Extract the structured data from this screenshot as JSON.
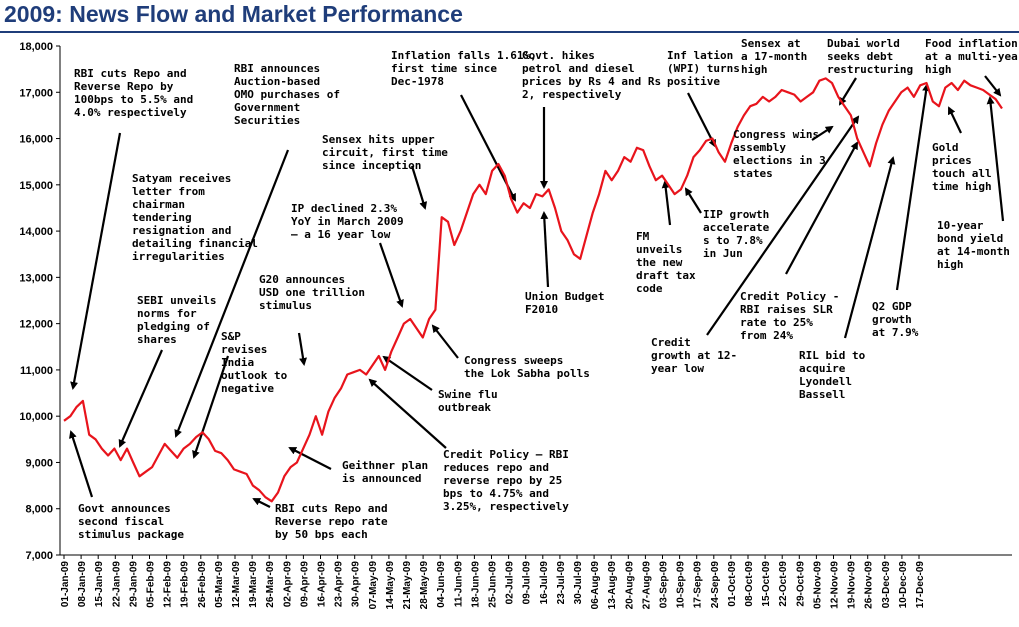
{
  "title": "2009: News Flow and Market Performance",
  "chart_data": {
    "type": "line",
    "title": "2009: News Flow and Market Performance",
    "xlabel": "",
    "ylabel": "",
    "ylim": [
      7000,
      18000
    ],
    "y_ticks": [
      "7,000",
      "8,000",
      "9,000",
      "10,000",
      "11,000",
      "12,000",
      "13,000",
      "14,000",
      "15,000",
      "16,000",
      "17,000",
      "18,000"
    ],
    "x_ticks": [
      "01-Jan-09",
      "08-Jan-09",
      "15-Jan-09",
      "22-Jan-09",
      "29-Jan-09",
      "05-Feb-09",
      "12-Feb-09",
      "19-Feb-09",
      "26-Feb-09",
      "05-Mar-09",
      "12-Mar-09",
      "19-Mar-09",
      "26-Mar-09",
      "02-Apr-09",
      "09-Apr-09",
      "16-Apr-09",
      "23-Apr-09",
      "30-Apr-09",
      "07-May-09",
      "14-May-09",
      "21-May-09",
      "28-May-09",
      "04-Jun-09",
      "11-Jun-09",
      "18-Jun-09",
      "25-Jun-09",
      "02-Jul-09",
      "09-Jul-09",
      "16-Jul-09",
      "23-Jul-09",
      "30-Jul-09",
      "06-Aug-09",
      "13-Aug-09",
      "20-Aug-09",
      "27-Aug-09",
      "03-Sep-09",
      "10-Sep-09",
      "17-Sep-09",
      "24-Sep-09",
      "01-Oct-09",
      "08-Oct-09",
      "15-Oct-09",
      "22-Oct-09",
      "29-Oct-09",
      "05-Nov-09",
      "12-Nov-09",
      "19-Nov-09",
      "26-Nov-09",
      "03-Dec-09",
      "10-Dec-09",
      "17-Dec-09"
    ],
    "grid": false,
    "line_color": "#e8141c",
    "series": [
      {
        "name": "",
        "points": [
          [
            0,
            9900
          ],
          [
            1,
            10000
          ],
          [
            2,
            10200
          ],
          [
            3,
            10330
          ],
          [
            4,
            9600
          ],
          [
            5,
            9500
          ],
          [
            6,
            9300
          ],
          [
            7,
            9150
          ],
          [
            8,
            9300
          ],
          [
            9,
            9050
          ],
          [
            10,
            9300
          ],
          [
            11,
            9000
          ],
          [
            12,
            8700
          ],
          [
            13,
            8800
          ],
          [
            14,
            8900
          ],
          [
            15,
            9150
          ],
          [
            16,
            9400
          ],
          [
            17,
            9250
          ],
          [
            18,
            9100
          ],
          [
            19,
            9300
          ],
          [
            20,
            9400
          ],
          [
            21,
            9550
          ],
          [
            22,
            9650
          ],
          [
            23,
            9500
          ],
          [
            24,
            9250
          ],
          [
            25,
            9200
          ],
          [
            26,
            9050
          ],
          [
            27,
            8850
          ],
          [
            28,
            8800
          ],
          [
            29,
            8750
          ],
          [
            30,
            8500
          ],
          [
            31,
            8400
          ],
          [
            32,
            8250
          ],
          [
            33,
            8160
          ],
          [
            34,
            8350
          ],
          [
            35,
            8700
          ],
          [
            36,
            8900
          ],
          [
            37,
            9000
          ],
          [
            38,
            9300
          ],
          [
            39,
            9600
          ],
          [
            40,
            10000
          ],
          [
            41,
            9600
          ],
          [
            42,
            10100
          ],
          [
            43,
            10400
          ],
          [
            44,
            10600
          ],
          [
            45,
            10900
          ],
          [
            46,
            10950
          ],
          [
            47,
            11000
          ],
          [
            48,
            10900
          ],
          [
            49,
            11100
          ],
          [
            50,
            11300
          ],
          [
            51,
            11000
          ],
          [
            52,
            11400
          ],
          [
            53,
            11700
          ],
          [
            54,
            12000
          ],
          [
            55,
            12100
          ],
          [
            56,
            11900
          ],
          [
            57,
            11700
          ],
          [
            58,
            12100
          ],
          [
            59,
            12300
          ],
          [
            60,
            14300
          ],
          [
            61,
            14200
          ],
          [
            62,
            13700
          ],
          [
            63,
            14000
          ],
          [
            64,
            14400
          ],
          [
            65,
            14800
          ],
          [
            66,
            15000
          ],
          [
            67,
            14800
          ],
          [
            68,
            15300
          ],
          [
            69,
            15450
          ],
          [
            70,
            15200
          ],
          [
            71,
            14700
          ],
          [
            72,
            14400
          ],
          [
            73,
            14600
          ],
          [
            74,
            14500
          ],
          [
            75,
            14800
          ],
          [
            76,
            14750
          ],
          [
            77,
            14900
          ],
          [
            78,
            14500
          ],
          [
            79,
            14000
          ],
          [
            80,
            13800
          ],
          [
            81,
            13500
          ],
          [
            82,
            13400
          ],
          [
            83,
            13900
          ],
          [
            84,
            14400
          ],
          [
            85,
            14800
          ],
          [
            86,
            15300
          ],
          [
            87,
            15100
          ],
          [
            88,
            15300
          ],
          [
            89,
            15600
          ],
          [
            90,
            15500
          ],
          [
            91,
            15800
          ],
          [
            92,
            15750
          ],
          [
            93,
            15400
          ],
          [
            94,
            15100
          ],
          [
            95,
            15200
          ],
          [
            96,
            15000
          ],
          [
            97,
            14800
          ],
          [
            98,
            14900
          ],
          [
            99,
            15200
          ],
          [
            100,
            15600
          ],
          [
            101,
            15750
          ],
          [
            102,
            15950
          ],
          [
            103,
            16000
          ],
          [
            104,
            15700
          ],
          [
            105,
            15500
          ],
          [
            106,
            15900
          ],
          [
            107,
            16250
          ],
          [
            108,
            16500
          ],
          [
            109,
            16700
          ],
          [
            110,
            16750
          ],
          [
            111,
            16900
          ],
          [
            112,
            16800
          ],
          [
            113,
            16900
          ],
          [
            114,
            17050
          ],
          [
            115,
            17000
          ],
          [
            116,
            16950
          ],
          [
            117,
            16800
          ],
          [
            118,
            16900
          ],
          [
            119,
            17000
          ],
          [
            120,
            17250
          ],
          [
            121,
            17300
          ],
          [
            122,
            17200
          ],
          [
            123,
            16900
          ],
          [
            124,
            16700
          ],
          [
            125,
            16500
          ],
          [
            126,
            16000
          ],
          [
            127,
            15700
          ],
          [
            128,
            15400
          ],
          [
            129,
            15900
          ],
          [
            130,
            16300
          ],
          [
            131,
            16600
          ],
          [
            132,
            16800
          ],
          [
            133,
            17000
          ],
          [
            134,
            17100
          ],
          [
            135,
            16900
          ],
          [
            136,
            17150
          ],
          [
            137,
            17200
          ],
          [
            138,
            16800
          ],
          [
            139,
            16700
          ],
          [
            140,
            17100
          ],
          [
            141,
            17200
          ],
          [
            142,
            17050
          ],
          [
            143,
            17250
          ],
          [
            144,
            17150
          ],
          [
            145,
            17100
          ],
          [
            146,
            17050
          ],
          [
            147,
            16950
          ],
          [
            148,
            16850
          ],
          [
            149,
            16650
          ]
        ]
      }
    ],
    "annotations": [
      {
        "id": "a1",
        "lines": [
          "RBI cuts Repo and",
          "Reverse Repo by",
          "100bps to 5.5% and",
          "4.0% respectively"
        ]
      },
      {
        "id": "a2",
        "lines": [
          "Satyam receives",
          "letter from",
          "chairman",
          "tendering",
          "resignation and",
          "detailing financial",
          "irregularities"
        ]
      },
      {
        "id": "a3",
        "lines": [
          "SEBI unveils",
          "norms for",
          "pledging of",
          "shares"
        ]
      },
      {
        "id": "a4",
        "lines": [
          "Govt announces",
          "second fiscal",
          "stimulus package"
        ]
      },
      {
        "id": "a5",
        "lines": [
          "RBI announces",
          "Auction-based",
          "OMO purchases of",
          "Government",
          "Securities"
        ]
      },
      {
        "id": "a6",
        "lines": [
          "S&P",
          "revises",
          "India",
          "outlook to",
          "negative"
        ]
      },
      {
        "id": "a7",
        "lines": [
          "G20 announces",
          "USD one trillion",
          "stimulus"
        ]
      },
      {
        "id": "a8",
        "lines": [
          "RBI cuts Repo and",
          "Reverse repo rate",
          "by 50 bps each"
        ]
      },
      {
        "id": "a9",
        "lines": [
          "Geithner plan",
          "is announced"
        ]
      },
      {
        "id": "a10",
        "lines": [
          "Sensex hits upper",
          "circuit, first time",
          "since inception"
        ]
      },
      {
        "id": "a11",
        "lines": [
          "IP declined 2.3%",
          "YoY in March 2009",
          "– a 16 year low"
        ]
      },
      {
        "id": "a12",
        "lines": [
          "Congress sweeps",
          "the Lok Sabha polls"
        ]
      },
      {
        "id": "a13",
        "lines": [
          "Swine flu",
          "outbreak"
        ]
      },
      {
        "id": "a14",
        "lines": [
          "Credit Policy – RBI",
          "reduces repo and",
          "reverse repo by 25",
          "bps to 4.75% and",
          "3.25%, respectively"
        ]
      },
      {
        "id": "a15",
        "lines": [
          "Inflation falls 1.61%,",
          "first time since",
          "Dec-1978"
        ]
      },
      {
        "id": "a16",
        "lines": [
          "Govt. hikes",
          "petrol and diesel",
          "prices by Rs 4 and Rs",
          "2, respectively"
        ]
      },
      {
        "id": "a17",
        "lines": [
          "Union Budget",
          "F2010"
        ]
      },
      {
        "id": "a18",
        "lines": [
          "FM",
          "unveils",
          "the new",
          "draft tax",
          "code"
        ]
      },
      {
        "id": "a19",
        "lines": [
          "IIP growth",
          "accelerate",
          "s to 7.8%",
          "in Jun"
        ]
      },
      {
        "id": "a20",
        "lines": [
          "Inf lation",
          "(WPI) turns",
          "positive"
        ]
      },
      {
        "id": "a21",
        "lines": [
          "Sensex at",
          "a 17-month",
          "high"
        ]
      },
      {
        "id": "a22",
        "lines": [
          "Dubai world",
          "seeks debt",
          "restructuring"
        ]
      },
      {
        "id": "a23",
        "lines": [
          "Congress wins",
          "assembly",
          "elections in 3",
          "states"
        ]
      },
      {
        "id": "a24",
        "lines": [
          "Credit",
          "growth at 12-",
          "year low"
        ]
      },
      {
        "id": "a25",
        "lines": [
          "Credit Policy -",
          "RBI raises SLR",
          "rate to 25%",
          "from 24%"
        ]
      },
      {
        "id": "a26",
        "lines": [
          "RIL bid to",
          "acquire",
          "Lyondell",
          "Bassell"
        ]
      },
      {
        "id": "a27",
        "lines": [
          "Q2 GDP",
          "growth",
          "at 7.9%"
        ]
      },
      {
        "id": "a28",
        "lines": [
          "Food inflation",
          "at a multi-year",
          "high"
        ]
      },
      {
        "id": "a29",
        "lines": [
          "Gold",
          "prices",
          "touch all",
          "time high"
        ]
      },
      {
        "id": "a30",
        "lines": [
          "10-year",
          "bond yield",
          "at 14-month",
          "high"
        ]
      }
    ]
  }
}
